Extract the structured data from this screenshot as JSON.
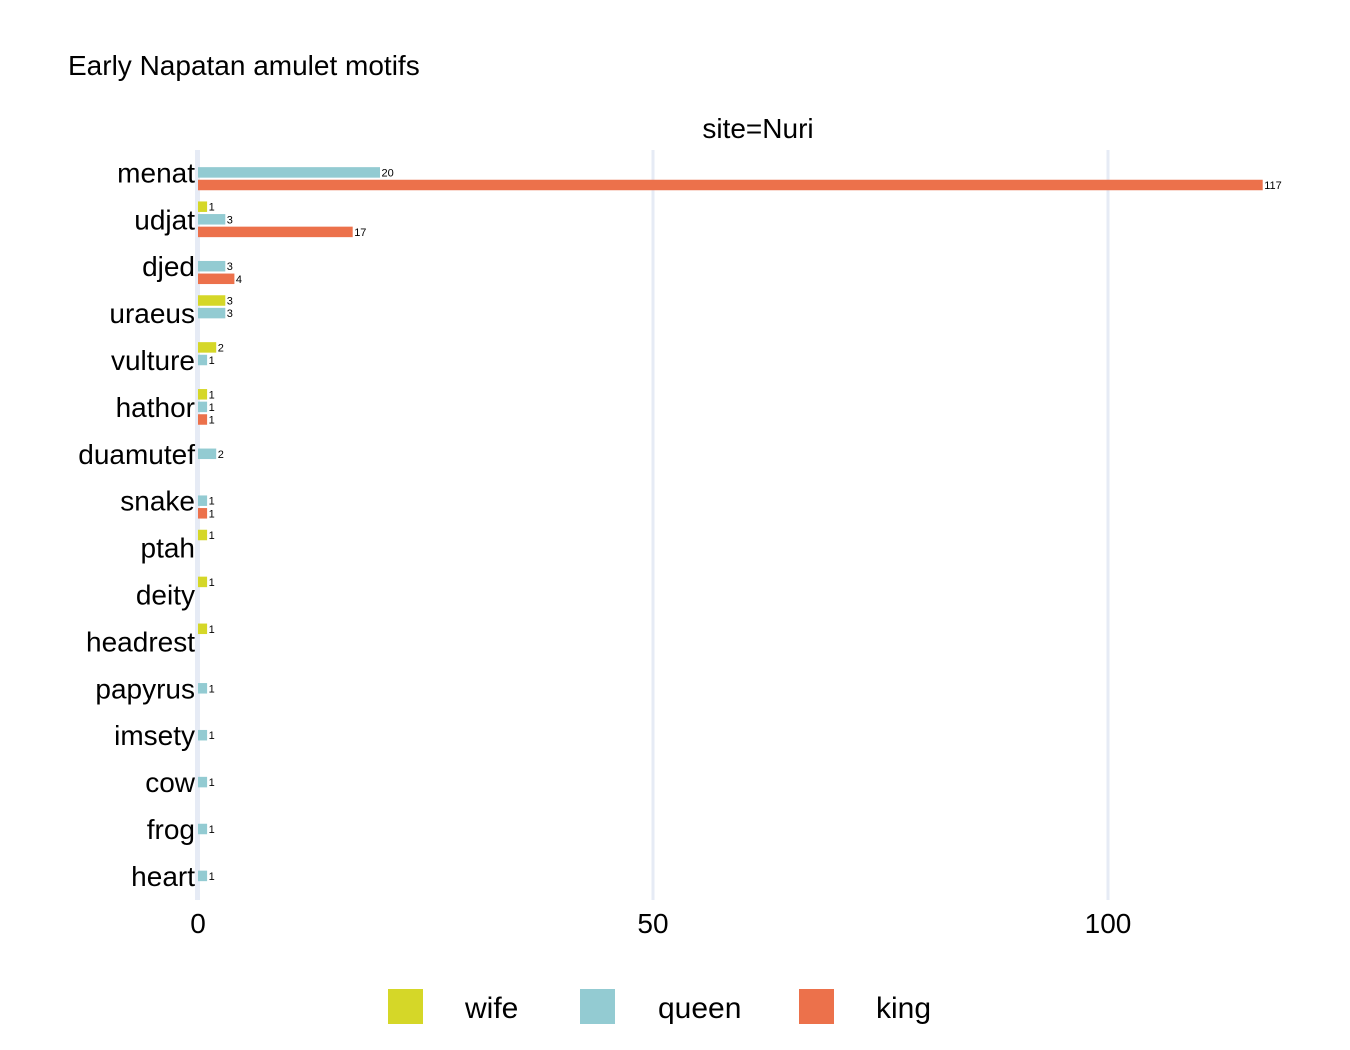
{
  "chart_data": {
    "type": "bar",
    "orientation": "horizontal",
    "title": "Early Napatan amulet motifs",
    "facet_label": "site=Nuri",
    "categories": [
      "menat",
      "udjat",
      "djed",
      "uraeus",
      "vulture",
      "hathor",
      "duamutef",
      "snake",
      "ptah",
      "deity",
      "headrest",
      "papyrus",
      "imsety",
      "cow",
      "frog",
      "heart"
    ],
    "series": [
      {
        "name": "wife",
        "color": "#d5d728",
        "values": [
          null,
          1,
          null,
          3,
          2,
          1,
          null,
          null,
          1,
          1,
          1,
          null,
          null,
          null,
          null,
          null
        ]
      },
      {
        "name": "queen",
        "color": "#93cbd2",
        "values": [
          20,
          3,
          3,
          3,
          1,
          1,
          2,
          1,
          null,
          null,
          null,
          1,
          1,
          1,
          1,
          1
        ]
      },
      {
        "name": "king",
        "color": "#ec714b",
        "values": [
          117,
          17,
          4,
          null,
          null,
          1,
          null,
          1,
          null,
          null,
          null,
          null,
          null,
          null,
          null,
          null
        ]
      }
    ],
    "xlim": [
      0,
      122
    ],
    "xticks": [
      0,
      50,
      100
    ],
    "xlabel": "",
    "ylabel": "",
    "grid": "vertical",
    "legend_position": "bottom"
  }
}
